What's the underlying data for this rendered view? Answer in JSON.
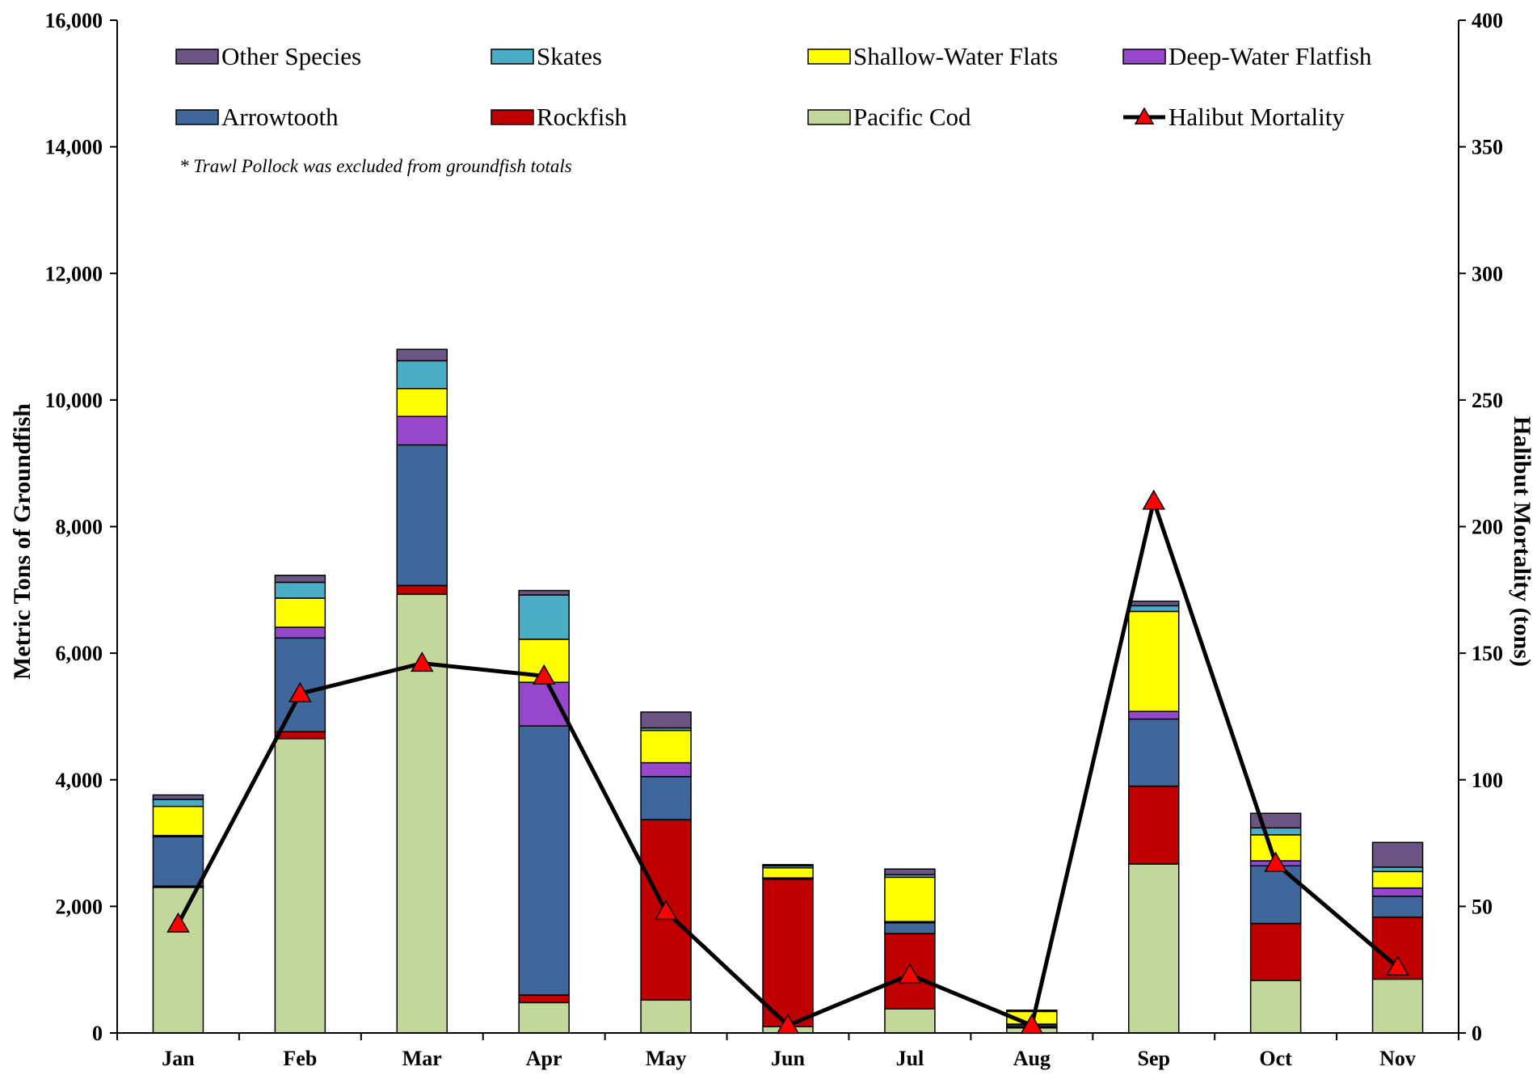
{
  "chart_data": {
    "type": "bar",
    "subtype": "stacked bar with line on secondary axis",
    "title": "",
    "note": "* Trawl Pollock was excluded from groundfish totals",
    "categories": [
      "Jan",
      "Feb",
      "Mar",
      "Apr",
      "May",
      "Jun",
      "Jul",
      "Aug",
      "Sep",
      "Oct",
      "Nov"
    ],
    "ylabel": "Metric Tons of Groundfish",
    "y2label": "Halibut Mortality (tons)",
    "ylim": [
      0,
      16000
    ],
    "y2lim": [
      0,
      400
    ],
    "yticks": [
      "0",
      "2,000",
      "4,000",
      "6,000",
      "8,000",
      "10,000",
      "12,000",
      "14,000",
      "16,000"
    ],
    "y2ticks": [
      "0",
      "50",
      "100",
      "150",
      "200",
      "250",
      "300",
      "350",
      "400"
    ],
    "grid": false,
    "legend_position": "top",
    "series": [
      {
        "name": "Pacific Cod",
        "color": "#c4d79b",
        "values": [
          2300,
          4650,
          6930,
          480,
          520,
          100,
          380,
          80,
          2670,
          830,
          850
        ]
      },
      {
        "name": "Rockfish",
        "color": "#c00000",
        "values": [
          20,
          110,
          140,
          120,
          2850,
          2330,
          1190,
          20,
          1230,
          900,
          980
        ]
      },
      {
        "name": "Arrowtooth",
        "color": "#3f679b",
        "values": [
          780,
          1480,
          2220,
          4250,
          680,
          20,
          170,
          30,
          1060,
          910,
          330
        ]
      },
      {
        "name": "Deep-Water Flatfish",
        "color": "#9747cc",
        "values": [
          20,
          170,
          450,
          690,
          220,
          0,
          20,
          10,
          120,
          80,
          130
        ]
      },
      {
        "name": "Shallow-Water Flats",
        "color": "#ffff00",
        "values": [
          460,
          460,
          440,
          680,
          510,
          160,
          700,
          200,
          1580,
          410,
          260
        ]
      },
      {
        "name": "Skates",
        "color": "#4bacc6",
        "values": [
          110,
          250,
          440,
          700,
          40,
          30,
          40,
          10,
          90,
          110,
          70
        ]
      },
      {
        "name": "Other Species",
        "color": "#6c5585",
        "values": [
          70,
          110,
          180,
          70,
          250,
          20,
          90,
          10,
          70,
          230,
          390
        ]
      }
    ],
    "line_series": {
      "name": "Halibut Mortality",
      "axis": "secondary",
      "color": "#000000",
      "marker_color": "#ff0000",
      "values": [
        43,
        134,
        146,
        141,
        48,
        3,
        23,
        3,
        210,
        67,
        26
      ]
    },
    "legend_order": [
      "Other Species",
      "Skates",
      "Shallow-Water Flats",
      "Deep-Water Flatfish",
      "Arrowtooth",
      "Rockfish",
      "Pacific Cod",
      "Halibut Mortality"
    ]
  }
}
